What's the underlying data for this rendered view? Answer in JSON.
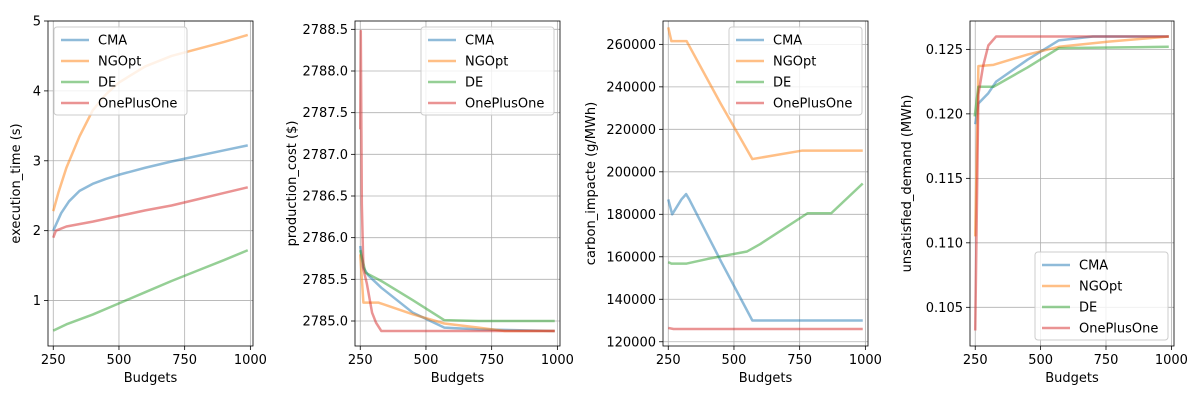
{
  "colors": {
    "CMA": "#1f77b4",
    "NGOpt": "#ff7f0e",
    "DE": "#2ca02c",
    "OnePlusOne": "#d62728"
  },
  "chart_data": [
    {
      "type": "line",
      "xlabel": "Budgets",
      "ylabel": "execution_time (s)",
      "xlim": [
        230,
        1010
      ],
      "ylim": [
        0.35,
        5.0
      ],
      "xticks": [
        250,
        500,
        750,
        1000
      ],
      "yticks": [
        1,
        2,
        3,
        4,
        5
      ],
      "ytick_labels": [
        "1",
        "2",
        "3",
        "4",
        "5"
      ],
      "grid": true,
      "legend": "upper-left",
      "series": [
        {
          "name": "CMA",
          "points": [
            [
              250,
              2.0
            ],
            [
              280,
              2.25
            ],
            [
              310,
              2.42
            ],
            [
              350,
              2.57
            ],
            [
              400,
              2.67
            ],
            [
              450,
              2.74
            ],
            [
              500,
              2.8
            ],
            [
              600,
              2.9
            ],
            [
              700,
              2.99
            ],
            [
              800,
              3.07
            ],
            [
              900,
              3.15
            ],
            [
              990,
              3.22
            ]
          ]
        },
        {
          "name": "NGOpt",
          "points": [
            [
              250,
              2.28
            ],
            [
              270,
              2.55
            ],
            [
              300,
              2.9
            ],
            [
              350,
              3.35
            ],
            [
              400,
              3.72
            ],
            [
              450,
              3.95
            ],
            [
              500,
              4.12
            ],
            [
              600,
              4.35
            ],
            [
              700,
              4.5
            ],
            [
              800,
              4.6
            ],
            [
              900,
              4.7
            ],
            [
              990,
              4.8
            ]
          ]
        },
        {
          "name": "DE",
          "points": [
            [
              250,
              0.57
            ],
            [
              300,
              0.66
            ],
            [
              400,
              0.8
            ],
            [
              500,
              0.96
            ],
            [
              600,
              1.12
            ],
            [
              700,
              1.28
            ],
            [
              800,
              1.43
            ],
            [
              900,
              1.58
            ],
            [
              990,
              1.72
            ]
          ]
        },
        {
          "name": "OnePlusOne",
          "points": [
            [
              250,
              1.9
            ],
            [
              260,
              2.0
            ],
            [
              300,
              2.06
            ],
            [
              400,
              2.13
            ],
            [
              500,
              2.21
            ],
            [
              600,
              2.29
            ],
            [
              700,
              2.36
            ],
            [
              800,
              2.45
            ],
            [
              900,
              2.54
            ],
            [
              990,
              2.62
            ]
          ]
        }
      ]
    },
    {
      "type": "line",
      "xlabel": "Budgets",
      "ylabel": "production_cost ($)",
      "xlim": [
        230,
        1010
      ],
      "ylim": [
        2784.7,
        2788.6
      ],
      "xticks": [
        250,
        500,
        750,
        1000
      ],
      "yticks": [
        2785.0,
        2785.5,
        2786.0,
        2786.5,
        2787.0,
        2787.5,
        2788.0,
        2788.5
      ],
      "ytick_labels": [
        "2785.0",
        "2785.5",
        "2786.0",
        "2786.5",
        "2787.0",
        "2787.5",
        "2788.0",
        "2788.5"
      ],
      "grid": true,
      "legend": "upper-right",
      "series": [
        {
          "name": "CMA",
          "points": [
            [
              250,
              2785.9
            ],
            [
              260,
              2785.65
            ],
            [
              280,
              2785.55
            ],
            [
              330,
              2785.4
            ],
            [
              450,
              2785.1
            ],
            [
              570,
              2784.92
            ],
            [
              700,
              2784.9
            ],
            [
              990,
              2784.88
            ]
          ]
        },
        {
          "name": "NGOpt",
          "points": [
            [
              250,
              2785.8
            ],
            [
              262,
              2785.22
            ],
            [
              320,
              2785.22
            ],
            [
              450,
              2785.08
            ],
            [
              570,
              2784.97
            ],
            [
              700,
              2784.92
            ],
            [
              800,
              2784.88
            ],
            [
              990,
              2784.88
            ]
          ]
        },
        {
          "name": "DE",
          "points": [
            [
              250,
              2785.85
            ],
            [
              270,
              2785.58
            ],
            [
              330,
              2785.48
            ],
            [
              450,
              2785.25
            ],
            [
              570,
              2785.01
            ],
            [
              700,
              2785.0
            ],
            [
              990,
              2785.0
            ]
          ]
        },
        {
          "name": "OnePlusOne",
          "points": [
            [
              250,
              2787.3
            ],
            [
              252,
              2788.48
            ],
            [
              256,
              2786.4
            ],
            [
              262,
              2785.62
            ],
            [
              275,
              2785.45
            ],
            [
              295,
              2785.1
            ],
            [
              310,
              2784.98
            ],
            [
              330,
              2784.88
            ],
            [
              400,
              2784.88
            ],
            [
              990,
              2784.88
            ]
          ]
        }
      ]
    },
    {
      "type": "line",
      "xlabel": "Budgets",
      "ylabel": "carbon_impacte (g/MWh)",
      "xlim": [
        230,
        1010
      ],
      "ylim": [
        118000,
        271000
      ],
      "xticks": [
        250,
        500,
        750,
        1000
      ],
      "yticks": [
        120000,
        140000,
        160000,
        180000,
        200000,
        220000,
        240000,
        260000
      ],
      "ytick_labels": [
        "120000",
        "140000",
        "160000",
        "180000",
        "200000",
        "220000",
        "240000",
        "260000"
      ],
      "grid": true,
      "legend": "upper-right",
      "series": [
        {
          "name": "CMA",
          "points": [
            [
              250,
              187000
            ],
            [
              265,
              180000
            ],
            [
              300,
              187000
            ],
            [
              318,
              189500
            ],
            [
              330,
              187000
            ],
            [
              450,
              158000
            ],
            [
              570,
              130000
            ],
            [
              990,
              130000
            ]
          ]
        },
        {
          "name": "NGOpt",
          "points": [
            [
              250,
              268000
            ],
            [
              262,
              261500
            ],
            [
              320,
              261500
            ],
            [
              450,
              232000
            ],
            [
              570,
              206000
            ],
            [
              760,
              210000
            ],
            [
              990,
              210000
            ]
          ]
        },
        {
          "name": "DE",
          "points": [
            [
              250,
              157500
            ],
            [
              262,
              156800
            ],
            [
              320,
              156800
            ],
            [
              400,
              159000
            ],
            [
              550,
              162500
            ],
            [
              600,
              166000
            ],
            [
              780,
              180500
            ],
            [
              870,
              180500
            ],
            [
              990,
              194500
            ]
          ]
        },
        {
          "name": "OnePlusOne",
          "points": [
            [
              250,
              126500
            ],
            [
              270,
              126000
            ],
            [
              990,
              126000
            ]
          ]
        }
      ]
    },
    {
      "type": "line",
      "xlabel": "Budgets",
      "ylabel": "unsatisfied_demand (MWh)",
      "xlim": [
        230,
        1010
      ],
      "ylim": [
        0.102,
        0.1272
      ],
      "xticks": [
        250,
        500,
        750,
        1000
      ],
      "yticks": [
        0.105,
        0.11,
        0.115,
        0.12,
        0.125
      ],
      "ytick_labels": [
        "0.105",
        "0.110",
        "0.115",
        "0.120",
        "0.125"
      ],
      "grid": true,
      "legend": "lower-right",
      "series": [
        {
          "name": "CMA",
          "points": [
            [
              250,
              0.1192
            ],
            [
              262,
              0.1208
            ],
            [
              300,
              0.1216
            ],
            [
              330,
              0.1225
            ],
            [
              450,
              0.1242
            ],
            [
              570,
              0.1257
            ],
            [
              700,
              0.126
            ],
            [
              990,
              0.126
            ]
          ]
        },
        {
          "name": "NGOpt",
          "points": [
            [
              250,
              0.1105
            ],
            [
              262,
              0.1237
            ],
            [
              320,
              0.1238
            ],
            [
              450,
              0.1246
            ],
            [
              570,
              0.1252
            ],
            [
              760,
              0.1256
            ],
            [
              990,
              0.126
            ]
          ]
        },
        {
          "name": "DE",
          "points": [
            [
              248,
              0.1198
            ],
            [
              262,
              0.1221
            ],
            [
              320,
              0.1221
            ],
            [
              450,
              0.1236
            ],
            [
              570,
              0.1251
            ],
            [
              990,
              0.1252
            ]
          ]
        },
        {
          "name": "OnePlusOne",
          "points": [
            [
              250,
              0.1032
            ],
            [
              262,
              0.1215
            ],
            [
              280,
              0.1237
            ],
            [
              300,
              0.1253
            ],
            [
              330,
              0.126
            ],
            [
              990,
              0.126
            ]
          ]
        }
      ]
    }
  ]
}
